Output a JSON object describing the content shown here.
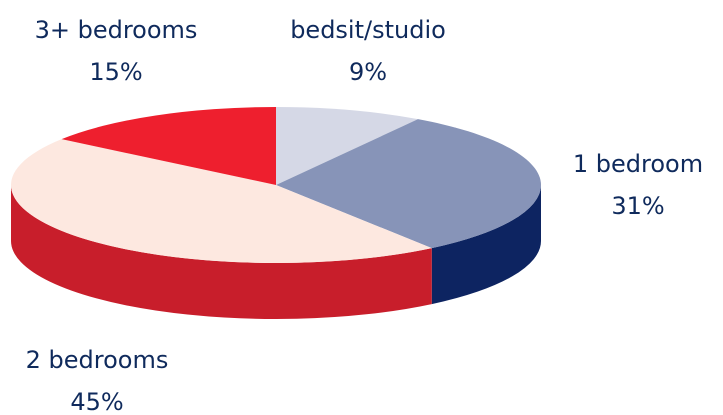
{
  "chart_data": {
    "type": "pie",
    "style": "3d",
    "title": "",
    "slices": [
      {
        "label": "bedsit/studio",
        "value": 9,
        "display": "9%",
        "top": "#d5d8e6",
        "side": "#b0b6cc"
      },
      {
        "label": "1 bedroom",
        "value": 31,
        "display": "31%",
        "top": "#8794b8",
        "side": "#0d2461"
      },
      {
        "label": "2 bedrooms",
        "value": 45,
        "display": "45%",
        "top": "#fde8e0",
        "side": "#c81e2b"
      },
      {
        "label": "3+ bedrooms",
        "value": 15,
        "display": "15%",
        "top": "#ee1f2e",
        "side": "#c81e2b"
      }
    ]
  }
}
